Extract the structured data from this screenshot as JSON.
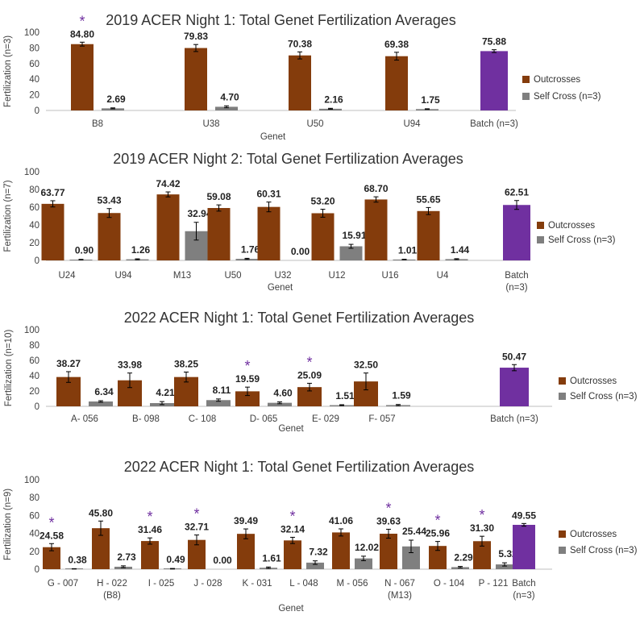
{
  "colors": {
    "outcross": "#843C0C",
    "selfcross": "#7F7F7F",
    "batch": "#7030A0",
    "star": "#7030A0",
    "axis": "#BFBFBF",
    "text": "#404040"
  },
  "chart_data": [
    {
      "type": "bar",
      "title": "2019 ACER Night 1: Total Genet Fertilization Averages",
      "xlabel": "Genet",
      "ylabel": "Fertilization (n=3)",
      "ylim": [
        0,
        100
      ],
      "yticks": [
        "0",
        "20",
        "40",
        "60",
        "80",
        "100"
      ],
      "categories": [
        [
          "B8"
        ],
        [
          "U38"
        ],
        [
          "U50"
        ],
        [
          "U94"
        ],
        [
          "Batch (n=3)"
        ]
      ],
      "series": [
        {
          "name": "Outcrosses",
          "values": [
            84.8,
            79.83,
            70.38,
            69.38,
            null
          ],
          "labels": [
            "84.80",
            "79.83",
            "70.38",
            "69.38",
            ""
          ],
          "errors": [
            2.5,
            4.5,
            4.5,
            5.0,
            0
          ]
        },
        {
          "name": "Self Cross (n=3)",
          "values": [
            2.69,
            4.7,
            2.16,
            1.75,
            null
          ],
          "labels": [
            "2.69",
            "4.70",
            "2.16",
            "1.75",
            ""
          ],
          "errors": [
            0.6,
            1.2,
            0.6,
            0.4,
            0
          ]
        }
      ],
      "batch": {
        "value": 75.88,
        "label": "75.88",
        "error": 1.8
      },
      "stars": [
        0
      ],
      "legend": "right"
    },
    {
      "type": "bar",
      "title": "2019 ACER Night 2: Total Genet Fertilization Averages",
      "xlabel": "Genet",
      "ylabel": "Fertilization (n=7)",
      "ylim": [
        0,
        100
      ],
      "yticks": [
        "0",
        "20",
        "40",
        "60",
        "80",
        "100"
      ],
      "categories": [
        [
          "U24"
        ],
        [
          "U94"
        ],
        [
          "M13"
        ],
        [
          "U50"
        ],
        [
          "U32"
        ],
        [
          "U12"
        ],
        [
          "U16"
        ],
        [
          "U4"
        ],
        [
          "Batch",
          "(n=3)"
        ]
      ],
      "series": [
        {
          "name": "Outcrosses",
          "values": [
            63.77,
            53.43,
            74.42,
            59.08,
            60.31,
            53.2,
            68.7,
            55.65,
            null
          ],
          "labels": [
            "63.77",
            "53.43",
            "74.42",
            "59.08",
            "60.31",
            "53.20",
            "68.70",
            "55.65",
            ""
          ],
          "errors": [
            3.5,
            5.0,
            2.8,
            3.5,
            5.5,
            4.5,
            3.0,
            4.0,
            0
          ]
        },
        {
          "name": "Self Cross (n=3)",
          "values": [
            0.9,
            1.26,
            32.94,
            1.76,
            0.0,
            15.91,
            1.01,
            1.44,
            null
          ],
          "labels": [
            "0.90",
            "1.26",
            "32.94",
            "1.76",
            "0.00",
            "15.91",
            "1.01",
            "1.44",
            ""
          ],
          "errors": [
            0.3,
            0.5,
            10.0,
            0.6,
            0,
            2.2,
            0.3,
            0.5,
            0
          ]
        }
      ],
      "batch": {
        "value": 62.51,
        "label": "62.51",
        "error": 5.0
      },
      "stars": [],
      "legend": "right"
    },
    {
      "type": "bar",
      "title": "2022 ACER Night 1: Total Genet Fertilization Averages",
      "xlabel": "Genet",
      "ylabel": "Fertilization (n=10)",
      "ylim": [
        0,
        100
      ],
      "yticks": [
        "0",
        "20",
        "40",
        "60",
        "80",
        "100"
      ],
      "categories": [
        [
          "A- 056"
        ],
        [
          "B- 098"
        ],
        [
          "C- 108"
        ],
        [
          "D- 065"
        ],
        [
          "E- 029"
        ],
        [
          "F- 057"
        ],
        [
          "Batch (n=3)"
        ]
      ],
      "series": [
        {
          "name": "Outcrosses",
          "values": [
            38.27,
            33.98,
            38.25,
            19.59,
            25.09,
            32.5,
            null
          ],
          "labels": [
            "38.27",
            "33.98",
            "38.25",
            "19.59",
            "25.09",
            "32.50",
            ""
          ],
          "errors": [
            7.0,
            9.5,
            6.5,
            5.5,
            5.0,
            11.0,
            0
          ]
        },
        {
          "name": "Self Cross (n=3)",
          "values": [
            6.34,
            4.21,
            8.11,
            4.6,
            1.51,
            1.59,
            null
          ],
          "labels": [
            "6.34",
            "4.21",
            "8.11",
            "4.60",
            "1.51",
            "1.59",
            ""
          ],
          "errors": [
            1.0,
            2.0,
            1.5,
            1.2,
            0.6,
            0.8,
            0
          ]
        }
      ],
      "batch": {
        "value": 50.47,
        "label": "50.47",
        "error": 4.0
      },
      "stars": [
        3,
        4
      ],
      "legend": "right"
    },
    {
      "type": "bar",
      "title": "2022 ACER Night 1: Total Genet Fertilization Averages",
      "xlabel": "Genet",
      "ylabel": "Fertilization (n=9)",
      "ylim": [
        0,
        100
      ],
      "yticks": [
        "0",
        "20",
        "40",
        "60",
        "80",
        "100"
      ],
      "categories": [
        [
          "G - 007"
        ],
        [
          "H - 022",
          "(B8)"
        ],
        [
          "I - 025"
        ],
        [
          "J - 028"
        ],
        [
          "K - 031"
        ],
        [
          "L - 048"
        ],
        [
          "M - 056"
        ],
        [
          "N - 067",
          "(M13)"
        ],
        [
          "O - 104"
        ],
        [
          "P - 121"
        ],
        [
          "Batch",
          "(n=3)"
        ]
      ],
      "series": [
        {
          "name": "Outcrosses",
          "values": [
            24.58,
            45.8,
            31.46,
            32.71,
            39.49,
            32.14,
            41.06,
            39.63,
            25.96,
            31.3,
            null
          ],
          "labels": [
            "24.58",
            "45.80",
            "31.46",
            "32.71",
            "39.49",
            "32.14",
            "41.06",
            "39.63",
            "25.96",
            "31.30",
            ""
          ],
          "errors": [
            4.0,
            8.0,
            3.5,
            5.5,
            5.5,
            3.5,
            4.0,
            5.0,
            5.0,
            5.5,
            0
          ]
        },
        {
          "name": "Self Cross (n=3)",
          "values": [
            0.38,
            2.73,
            0.49,
            0.0,
            1.61,
            7.32,
            12.02,
            25.44,
            2.29,
            5.32,
            null
          ],
          "labels": [
            "0.38",
            "2.73",
            "0.49",
            "0.00",
            "1.61",
            "7.32",
            "12.02",
            "25.44",
            "2.29",
            "5.32",
            ""
          ],
          "errors": [
            0.2,
            1.0,
            0.3,
            0,
            0.8,
            2.0,
            2.5,
            7.0,
            0.8,
            1.8,
            0
          ]
        }
      ],
      "batch": {
        "value": 49.55,
        "label": "49.55",
        "error": 1.5
      },
      "stars": [
        0,
        2,
        3,
        5,
        7,
        8,
        9
      ],
      "legend": "right"
    }
  ]
}
